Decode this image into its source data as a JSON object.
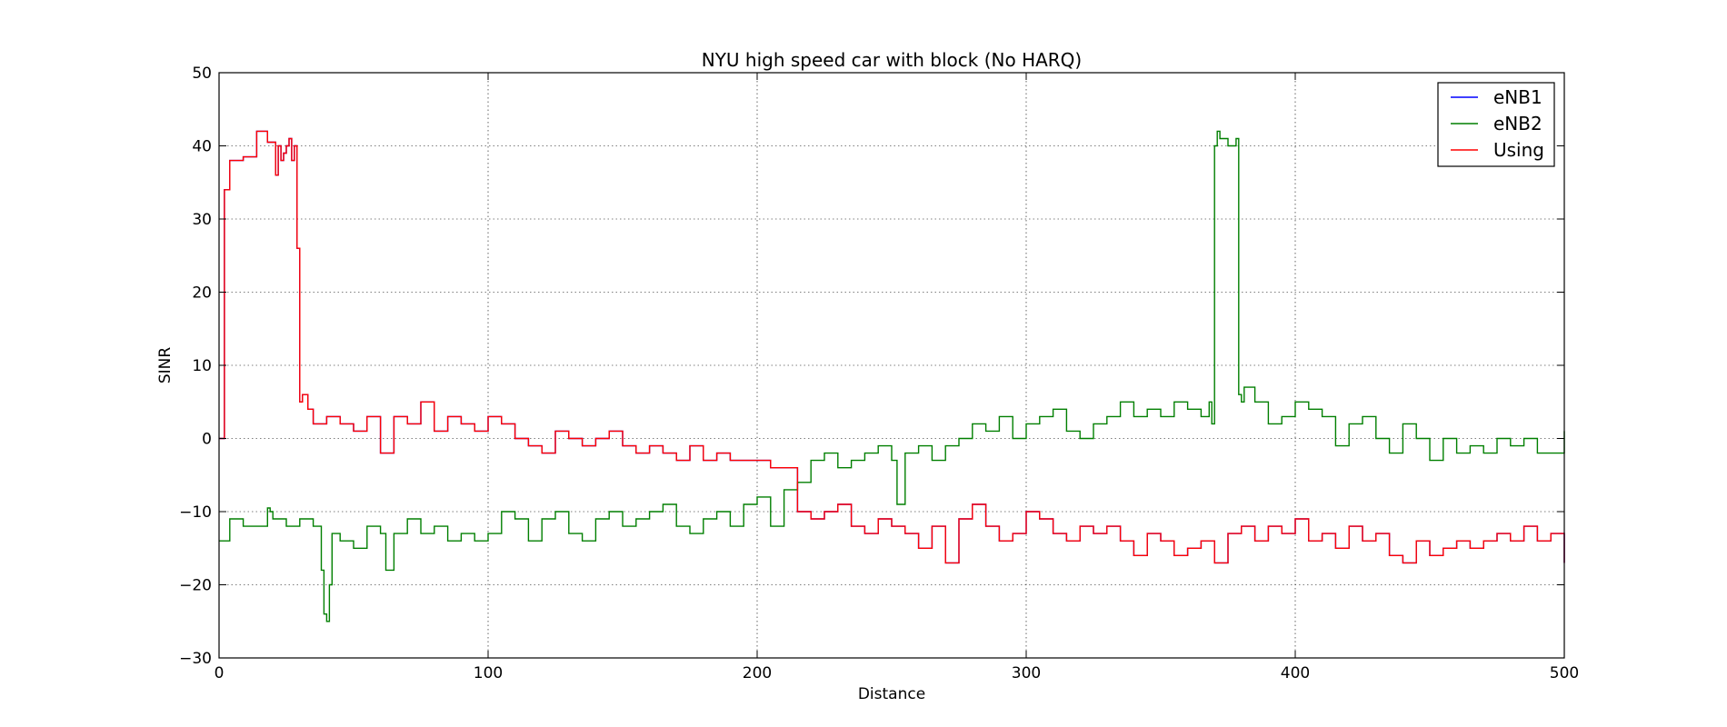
{
  "chart_data": {
    "type": "line",
    "title": "NYU high speed car with block (No HARQ)",
    "xlabel": "Distance",
    "ylabel": "SINR",
    "xlim": [
      0,
      500
    ],
    "ylim": [
      -30,
      50
    ],
    "x_ticks": [
      0,
      100,
      200,
      300,
      400,
      500
    ],
    "y_ticks": [
      -30,
      -20,
      -10,
      0,
      10,
      20,
      30,
      40,
      50
    ],
    "grid": true,
    "legend_position": "top-right",
    "legend_entries": [
      "eNB1",
      "eNB2",
      "Using"
    ],
    "series": [
      {
        "name": "eNB1",
        "color": "#0000ff",
        "x": [
          0,
          1,
          2,
          2.5,
          3,
          4,
          8,
          9,
          13,
          14,
          18,
          19,
          20,
          21,
          22,
          23,
          24,
          25,
          26,
          27,
          28,
          29,
          30,
          31,
          33,
          35,
          40,
          45,
          50,
          55,
          60,
          65,
          70,
          75,
          80,
          85,
          90,
          95,
          100,
          105,
          110,
          115,
          120,
          125,
          130,
          135,
          140,
          145,
          150,
          155,
          160,
          165,
          170,
          175,
          180,
          185,
          190,
          195,
          200,
          205,
          210,
          215,
          220,
          225,
          230,
          235,
          240,
          245,
          250,
          255,
          260,
          265,
          270,
          275,
          280,
          285,
          290,
          295,
          300,
          305,
          310,
          315,
          320,
          325,
          330,
          335,
          340,
          345,
          350,
          355,
          360,
          365,
          370,
          375,
          380,
          385,
          390,
          395,
          400,
          405,
          410,
          415,
          420,
          425,
          430,
          435,
          440,
          445,
          450,
          455,
          460,
          465,
          470,
          475,
          480,
          485,
          490,
          495,
          500
        ],
        "y": [
          0,
          0,
          34,
          34,
          34,
          38,
          38,
          38.5,
          38.5,
          42,
          40.5,
          40.5,
          40.5,
          36,
          40,
          38,
          39,
          40,
          41,
          38,
          40,
          26,
          5,
          6,
          4,
          2,
          3,
          2,
          1,
          3,
          -2,
          3,
          2,
          5,
          1,
          3,
          2,
          1,
          3,
          2,
          0,
          -1,
          -2,
          1,
          0,
          -1,
          0,
          1,
          -1,
          -2,
          -1,
          -2,
          -3,
          -1,
          -3,
          -2,
          -3,
          -3,
          -3,
          -4,
          -4,
          -10,
          -11,
          -10,
          -9,
          -12,
          -13,
          -11,
          -12,
          -13,
          -15,
          -12,
          -17,
          -11,
          -9,
          -12,
          -14,
          -13,
          -10,
          -11,
          -13,
          -14,
          -12,
          -13,
          -12,
          -14,
          -16,
          -13,
          -14,
          -16,
          -15,
          -14,
          -17,
          -13,
          -12,
          -14,
          -12,
          -13,
          -11,
          -14,
          -13,
          -15,
          -12,
          -14,
          -13,
          -16,
          -17,
          -14,
          -16,
          -15,
          -14,
          -15,
          -14,
          -13,
          -14,
          -12,
          -14,
          -13,
          -17
        ]
      },
      {
        "name": "eNB2",
        "color": "#007f00",
        "x": [
          0,
          3,
          4,
          8,
          9,
          13,
          14,
          18,
          19,
          20,
          25,
          30,
          35,
          37,
          38,
          39,
          40,
          41,
          42,
          45,
          50,
          55,
          60,
          62,
          65,
          70,
          75,
          80,
          85,
          90,
          95,
          100,
          105,
          110,
          115,
          120,
          125,
          130,
          135,
          140,
          145,
          150,
          155,
          160,
          165,
          170,
          175,
          180,
          185,
          190,
          195,
          200,
          205,
          210,
          215,
          220,
          225,
          230,
          235,
          240,
          245,
          250,
          252,
          255,
          260,
          265,
          270,
          275,
          280,
          285,
          290,
          295,
          300,
          305,
          310,
          315,
          320,
          325,
          330,
          335,
          340,
          345,
          350,
          355,
          360,
          365,
          368,
          369,
          370,
          371,
          372,
          375,
          378,
          379,
          380,
          381,
          385,
          390,
          395,
          400,
          405,
          410,
          415,
          420,
          425,
          430,
          435,
          440,
          445,
          450,
          455,
          460,
          465,
          470,
          475,
          480,
          485,
          490,
          495,
          500
        ],
        "y": [
          -14,
          -14,
          -11,
          -11,
          -12,
          -12,
          -12,
          -9.5,
          -10,
          -11,
          -12,
          -11,
          -12,
          -12,
          -18,
          -24,
          -25,
          -20,
          -13,
          -14,
          -15,
          -12,
          -13,
          -18,
          -13,
          -11,
          -13,
          -12,
          -14,
          -13,
          -14,
          -13,
          -10,
          -11,
          -14,
          -11,
          -10,
          -13,
          -14,
          -11,
          -10,
          -12,
          -11,
          -10,
          -9,
          -12,
          -13,
          -11,
          -10,
          -12,
          -9,
          -8,
          -12,
          -7,
          -6,
          -3,
          -2,
          -4,
          -3,
          -2,
          -1,
          -3,
          -9,
          -2,
          -1,
          -3,
          -1,
          0,
          2,
          1,
          3,
          0,
          2,
          3,
          4,
          1,
          0,
          2,
          3,
          5,
          3,
          4,
          3,
          5,
          4,
          3,
          5,
          2,
          40,
          42,
          41,
          40,
          41,
          6,
          5,
          7,
          5,
          2,
          3,
          5,
          4,
          3,
          -1,
          2,
          3,
          0,
          -2,
          2,
          0,
          -3,
          0,
          -2,
          -1,
          -2,
          0,
          -1,
          0,
          -2,
          -2,
          1
        ]
      },
      {
        "name": "Using",
        "color": "#ff0000",
        "x": [
          0,
          1,
          2,
          2.5,
          3,
          4,
          8,
          9,
          13,
          14,
          18,
          19,
          20,
          21,
          22,
          23,
          24,
          25,
          26,
          27,
          28,
          29,
          30,
          31,
          33,
          35,
          40,
          45,
          50,
          55,
          60,
          65,
          70,
          75,
          80,
          85,
          90,
          95,
          100,
          105,
          110,
          115,
          120,
          125,
          130,
          135,
          140,
          145,
          150,
          155,
          160,
          165,
          170,
          175,
          180,
          185,
          190,
          195,
          200,
          205,
          210,
          215,
          220,
          225,
          230,
          235,
          240,
          245,
          250,
          255,
          260,
          265,
          270,
          275,
          280,
          285,
          290,
          295,
          300,
          305,
          310,
          315,
          320,
          325,
          330,
          335,
          340,
          345,
          350,
          355,
          360,
          365,
          370,
          375,
          380,
          385,
          390,
          395,
          400,
          405,
          410,
          415,
          420,
          425,
          430,
          435,
          440,
          445,
          450,
          455,
          460,
          465,
          470,
          475,
          480,
          485,
          490,
          495,
          500
        ],
        "y": [
          0,
          0,
          34,
          34,
          34,
          38,
          38,
          38.5,
          38.5,
          42,
          40.5,
          40.5,
          40.5,
          36,
          40,
          38,
          39,
          40,
          41,
          38,
          40,
          26,
          5,
          6,
          4,
          2,
          3,
          2,
          1,
          3,
          -2,
          3,
          2,
          5,
          1,
          3,
          2,
          1,
          3,
          2,
          0,
          -1,
          -2,
          1,
          0,
          -1,
          0,
          1,
          -1,
          -2,
          -1,
          -2,
          -3,
          -1,
          -3,
          -2,
          -3,
          -3,
          -3,
          -4,
          -4,
          -10,
          -11,
          -10,
          -9,
          -12,
          -13,
          -11,
          -12,
          -13,
          -15,
          -12,
          -17,
          -11,
          -9,
          -12,
          -14,
          -13,
          -10,
          -11,
          -13,
          -14,
          -12,
          -13,
          -12,
          -14,
          -16,
          -13,
          -14,
          -16,
          -15,
          -14,
          -17,
          -13,
          -12,
          -14,
          -12,
          -13,
          -11,
          -14,
          -13,
          -15,
          -12,
          -14,
          -13,
          -16,
          -17,
          -14,
          -16,
          -15,
          -14,
          -15,
          -14,
          -13,
          -14,
          -12,
          -14,
          -13,
          -17
        ]
      }
    ]
  }
}
